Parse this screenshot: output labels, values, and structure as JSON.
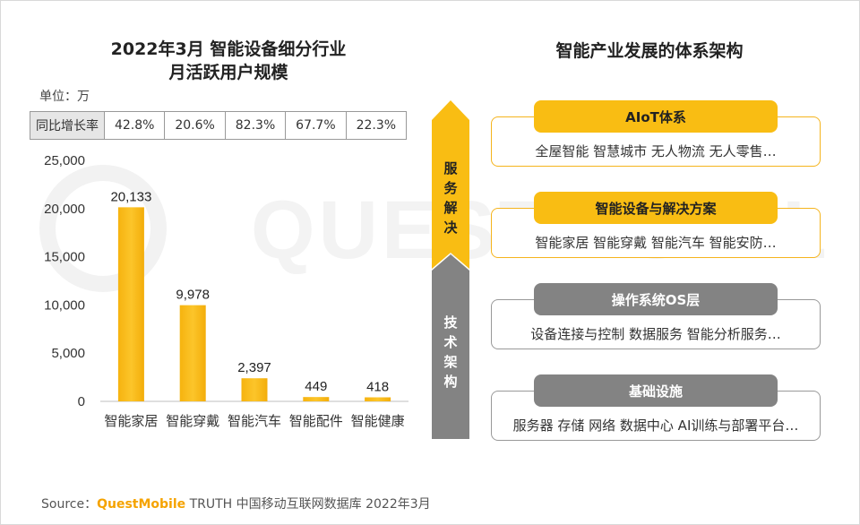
{
  "chart_data": {
    "type": "bar",
    "title_line1": "2022年3月 智能设备细分行业",
    "title_line2": "月活跃用户规模",
    "unit": "单位：万",
    "categories": [
      "智能家居",
      "智能穿戴",
      "智能汽车",
      "智能配件",
      "智能健康"
    ],
    "values": [
      20133,
      9978,
      2397,
      449,
      418
    ],
    "value_labels": [
      "20,133",
      "9,978",
      "2,397",
      "449",
      "418"
    ],
    "ylim": [
      0,
      25000
    ],
    "yticks": [
      0,
      5000,
      10000,
      15000,
      20000,
      25000
    ],
    "ytick_labels": [
      "0",
      "5,000",
      "10,000",
      "15,000",
      "20,000",
      "25,000"
    ],
    "grid": false,
    "bar_color": "#f9bd13",
    "yoy": {
      "header": "同比增长率",
      "values": [
        "42.8%",
        "20.6%",
        "82.3%",
        "67.7%",
        "22.3%"
      ]
    }
  },
  "watermark": "QUESTMOBILE",
  "architecture": {
    "title": "智能产业发展的体系架构",
    "arrow_top_label": "服务解决",
    "arrow_bottom_label": "技术架构",
    "arrow_top_color": "#f9bd13",
    "arrow_bottom_color": "#838383",
    "layers": [
      {
        "title": "AIoT体系",
        "items": "全屋智能  智慧城市  无人物流  无人零售…"
      },
      {
        "title": "智能设备与解决方案",
        "items": "智能家居  智能穿戴  智能汽车  智能安防…"
      },
      {
        "title": "操作系统OS层",
        "items": "设备连接与控制  数据服务  智能分析服务…"
      },
      {
        "title": "基础设施",
        "items": "服务器  存储  网络  数据中心  AI训练与部署平台…"
      }
    ]
  },
  "source": {
    "label": "Source：",
    "brand": "QuestMobile",
    "text": " TRUTH 中国移动互联网数据库 2022年3月"
  }
}
